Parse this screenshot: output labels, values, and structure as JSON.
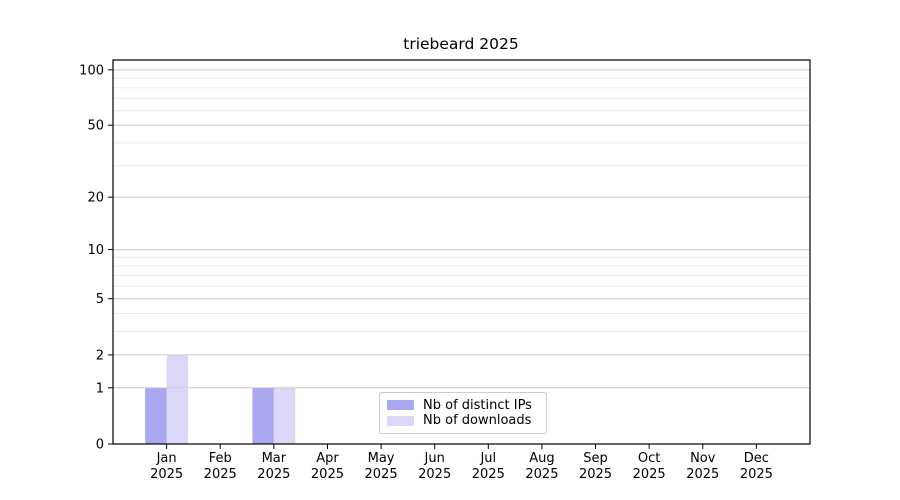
{
  "chart_data": {
    "type": "bar",
    "title": "triebeard 2025",
    "categories": [
      "Jan",
      "Feb",
      "Mar",
      "Apr",
      "May",
      "Jun",
      "Jul",
      "Aug",
      "Sep",
      "Oct",
      "Nov",
      "Dec"
    ],
    "tick_year": "2025",
    "series": [
      {
        "name": "Nb of distinct IPs",
        "color": "#a8a8f0",
        "values": [
          1,
          0,
          1,
          0,
          0,
          0,
          0,
          0,
          0,
          0,
          0,
          0
        ]
      },
      {
        "name": "Nb of downloads",
        "color": "#d9d9f7",
        "values": [
          2,
          0,
          1,
          0,
          0,
          0,
          0,
          0,
          0,
          0,
          0,
          0
        ]
      }
    ],
    "scale": "log1p",
    "ylim": [
      0,
      113
    ],
    "yticks": [
      0,
      1,
      2,
      5,
      10,
      20,
      50,
      100
    ],
    "minor_gridlines": [
      3,
      4,
      6,
      7,
      8,
      9,
      30,
      40,
      60,
      70,
      80,
      90
    ],
    "grid": true,
    "legend_position": "inside-bottom-center",
    "colors": {
      "major_grid": "#cccccc",
      "minor_grid": "#ececec",
      "axis": "#000000",
      "text": "#000000"
    }
  }
}
